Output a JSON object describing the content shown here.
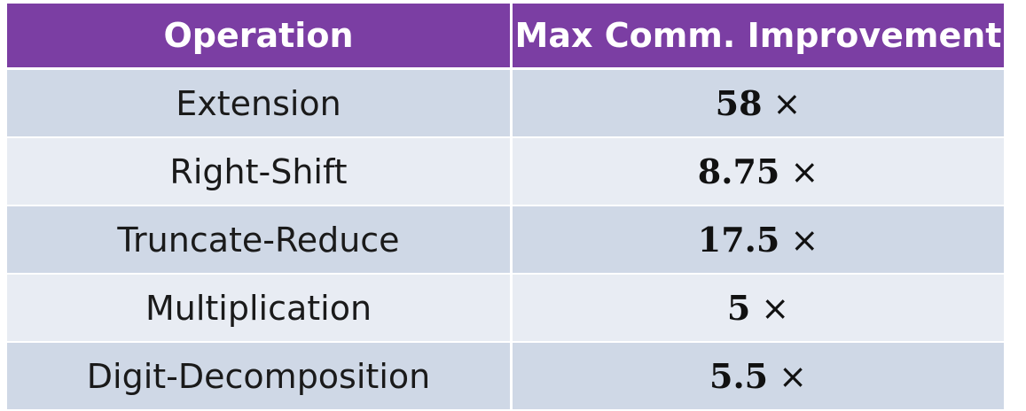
{
  "table": {
    "headers": [
      "Operation",
      "Max Comm. Improvement"
    ],
    "rows": [
      {
        "operation": "Extension",
        "value": "58",
        "suffix": "×"
      },
      {
        "operation": "Right-Shift",
        "value": "8.75",
        "suffix": "×"
      },
      {
        "operation": "Truncate-Reduce",
        "value": "17.5",
        "suffix": "×"
      },
      {
        "operation": "Multiplication",
        "value": "5",
        "suffix": "×"
      },
      {
        "operation": "Digit-Decomposition",
        "value": "5.5",
        "suffix": "×"
      }
    ]
  },
  "colors": {
    "header_bg": "#7b3ea3",
    "row_odd_bg": "#cfd8e6",
    "row_even_bg": "#e8ecf3"
  }
}
